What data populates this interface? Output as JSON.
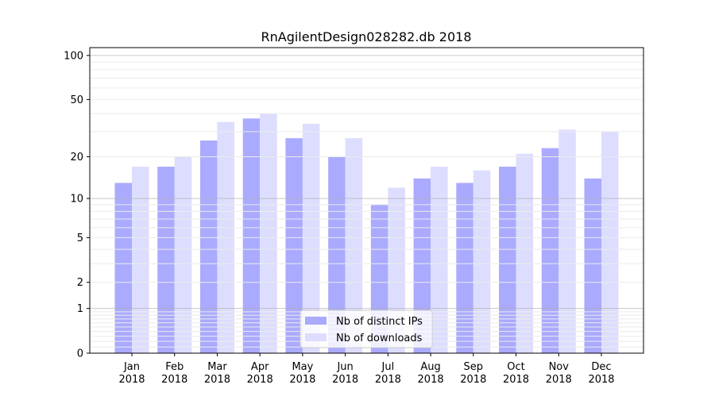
{
  "chart_data": {
    "type": "bar",
    "title": "RnAgilentDesign028282.db 2018",
    "xlabel": "",
    "ylabel": "",
    "yscale": "log(1+y)",
    "ylim": [
      0,
      113
    ],
    "yticks": [
      0,
      1,
      2,
      5,
      10,
      20,
      50,
      100
    ],
    "grid": true,
    "legend_placement": "bottom-center",
    "categories": [
      "Jan\n2018",
      "Feb\n2018",
      "Mar\n2018",
      "Apr\n2018",
      "May\n2018",
      "Jun\n2018",
      "Jul\n2018",
      "Aug\n2018",
      "Sep\n2018",
      "Oct\n2018",
      "Nov\n2018",
      "Dec\n2018"
    ],
    "series": [
      {
        "name": "Nb of distinct IPs",
        "color": "#aaaaff",
        "values": [
          13,
          17,
          26,
          37,
          27,
          20,
          9,
          14,
          13,
          17,
          23,
          14
        ]
      },
      {
        "name": "Nb of downloads",
        "color": "#ddddff",
        "values": [
          17,
          20,
          35,
          40,
          34,
          27,
          12,
          17,
          16,
          21,
          31,
          30
        ]
      }
    ]
  }
}
